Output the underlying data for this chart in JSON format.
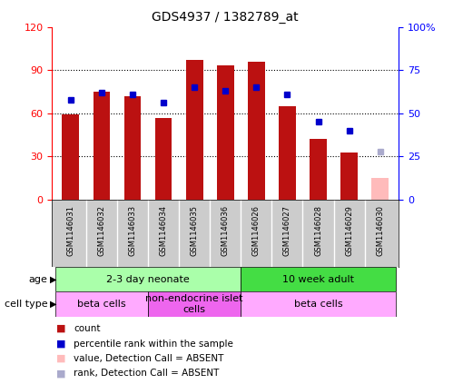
{
  "title": "GDS4937 / 1382789_at",
  "samples": [
    "GSM1146031",
    "GSM1146032",
    "GSM1146033",
    "GSM1146034",
    "GSM1146035",
    "GSM1146036",
    "GSM1146026",
    "GSM1146027",
    "GSM1146028",
    "GSM1146029",
    "GSM1146030"
  ],
  "count_values": [
    59,
    75,
    72,
    57,
    97,
    93,
    96,
    65,
    42,
    33,
    15
  ],
  "rank_values": [
    58,
    62,
    61,
    56,
    65,
    63,
    65,
    61,
    45,
    40,
    null
  ],
  "rank_absent": [
    null,
    null,
    null,
    null,
    null,
    null,
    null,
    null,
    null,
    null,
    28
  ],
  "absent_flags": [
    false,
    false,
    false,
    false,
    false,
    false,
    false,
    false,
    false,
    false,
    true
  ],
  "ylim_left": [
    0,
    120
  ],
  "ylim_right": [
    0,
    100
  ],
  "yticks_left": [
    0,
    30,
    60,
    90,
    120
  ],
  "yticks_right": [
    0,
    25,
    50,
    75,
    100
  ],
  "ytick_labels_left": [
    "0",
    "30",
    "60",
    "90",
    "120"
  ],
  "ytick_labels_right": [
    "0",
    "25",
    "50",
    "75",
    "100%"
  ],
  "bar_color_present": "#bb1111",
  "bar_color_absent": "#ffbbbb",
  "rank_color_present": "#0000cc",
  "rank_color_absent": "#aaaacc",
  "bar_width": 0.55,
  "age_groups": [
    {
      "label": "2-3 day neonate",
      "start": 0,
      "end": 6,
      "color": "#aaffaa"
    },
    {
      "label": "10 week adult",
      "start": 6,
      "end": 11,
      "color": "#44dd44"
    }
  ],
  "cell_groups": [
    {
      "label": "beta cells",
      "start": 0,
      "end": 3,
      "color": "#ffaaff"
    },
    {
      "label": "non-endocrine islet\ncells",
      "start": 3,
      "end": 6,
      "color": "#ee66ee"
    },
    {
      "label": "beta cells",
      "start": 6,
      "end": 11,
      "color": "#ffaaff"
    }
  ],
  "legend_items": [
    {
      "color": "#bb1111",
      "label": "count"
    },
    {
      "color": "#0000cc",
      "label": "percentile rank within the sample"
    },
    {
      "color": "#ffbbbb",
      "label": "value, Detection Call = ABSENT"
    },
    {
      "color": "#aaaacc",
      "label": "rank, Detection Call = ABSENT"
    }
  ],
  "label_area_color": "#cccccc"
}
